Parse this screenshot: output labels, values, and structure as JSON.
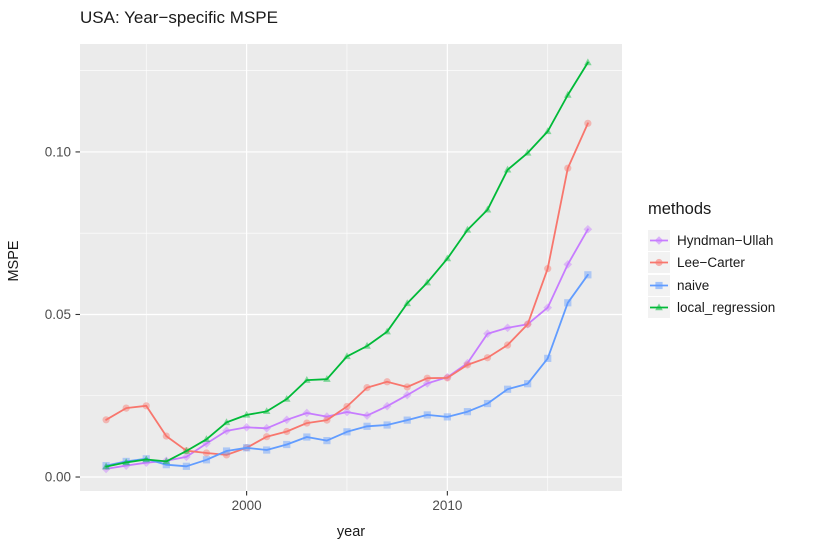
{
  "title": "USA: Year−specific MSPE",
  "chart_data": {
    "type": "line",
    "title": "USA: Year−specific MSPE",
    "xlabel": "year",
    "ylabel": "MSPE",
    "legend_title": "methods",
    "legend_position": "right",
    "grid": true,
    "panel_bg": "#EBEBEB",
    "grid_color": "#FFFFFF",
    "tick_label_color": "#4D4D4D",
    "x": [
      1993,
      1994,
      1995,
      1996,
      1997,
      1998,
      1999,
      2000,
      2001,
      2002,
      2003,
      2004,
      2005,
      2006,
      2007,
      2008,
      2009,
      2010,
      2011,
      2012,
      2013,
      2014,
      2015,
      2016,
      2017
    ],
    "x_ticks": [
      2000,
      2010
    ],
    "x_tick_labels": [
      "2000",
      "2010"
    ],
    "x_minor_ticks": [
      1995,
      2005,
      2015
    ],
    "y_ticks": [
      0,
      0.05,
      0.1
    ],
    "y_tick_labels": [
      "0.00",
      "0.05",
      "0.10"
    ],
    "y_minor_ticks": [
      0.025,
      0.075,
      0.125
    ],
    "xlim": [
      1991.7,
      2018.7
    ],
    "ylim": [
      -0.0043,
      0.1332
    ],
    "series": [
      {
        "name": "Hyndman−Ullah",
        "color": "#C77CFF",
        "marker": "diamond",
        "values": [
          0.0025,
          0.0035,
          0.0044,
          0.005,
          0.0062,
          0.0103,
          0.0142,
          0.0153,
          0.015,
          0.0176,
          0.0197,
          0.0186,
          0.02,
          0.0189,
          0.0218,
          0.0252,
          0.0288,
          0.0307,
          0.035,
          0.0441,
          0.0459,
          0.047,
          0.0521,
          0.0654,
          0.0762
        ]
      },
      {
        "name": "Lee−Carter",
        "color": "#F8766D",
        "marker": "circle",
        "values": [
          0.0176,
          0.0212,
          0.0219,
          0.0126,
          0.0081,
          0.0074,
          0.0068,
          0.009,
          0.0124,
          0.014,
          0.0166,
          0.0175,
          0.0217,
          0.0275,
          0.0293,
          0.0277,
          0.0304,
          0.0305,
          0.0345,
          0.0367,
          0.0406,
          0.047,
          0.0641,
          0.095,
          0.1088
        ]
      },
      {
        "name": "naive",
        "color": "#619CFF",
        "marker": "square",
        "values": [
          0.0035,
          0.0048,
          0.0056,
          0.0038,
          0.0033,
          0.0053,
          0.008,
          0.009,
          0.0083,
          0.01,
          0.0123,
          0.0112,
          0.0139,
          0.0156,
          0.016,
          0.0175,
          0.0191,
          0.0185,
          0.0201,
          0.0226,
          0.027,
          0.0287,
          0.0365,
          0.0536,
          0.0622
        ]
      },
      {
        "name": "local_regression",
        "color": "#00BA38",
        "marker": "triangle",
        "values": [
          0.0032,
          0.0045,
          0.0054,
          0.0048,
          0.008,
          0.0116,
          0.0168,
          0.0191,
          0.0202,
          0.024,
          0.0298,
          0.0301,
          0.0371,
          0.0403,
          0.0447,
          0.0534,
          0.0598,
          0.0672,
          0.076,
          0.0822,
          0.0945,
          0.0997,
          0.1063,
          0.1175,
          0.1275
        ]
      }
    ]
  }
}
